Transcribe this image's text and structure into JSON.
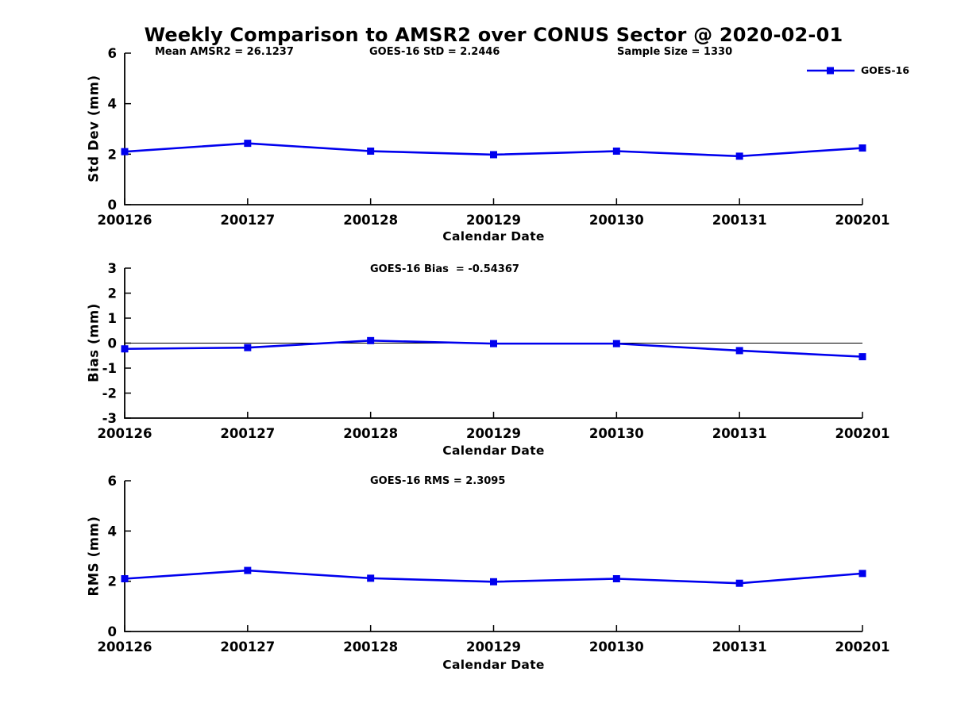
{
  "page": {
    "title": "Weekly Comparison to AMSR2 over CONUS Sector @ 2020-02-01",
    "background": "#ffffff",
    "text_color": "#000000"
  },
  "annotations": {
    "mean_amsr2": "Mean AMSR2 = 26.1237",
    "goes16_std": "GOES-16 StD = 2.2446",
    "sample_size": "Sample Size = 1330",
    "goes16_bias": "GOES-16 Bias  = -0.54367",
    "goes16_rms": "GOES-16 RMS = 2.3095"
  },
  "legend": {
    "label": "GOES-16",
    "color": "#0000ee",
    "marker": "square",
    "position": "top-right"
  },
  "chart_data": [
    {
      "type": "line",
      "name": "std-dev-vs-date",
      "title": "",
      "xlabel": "Calendar Date",
      "ylabel": "Std Dev (mm)",
      "categories": [
        "200126",
        "200127",
        "200128",
        "200129",
        "200130",
        "200131",
        "200201"
      ],
      "ylim": [
        0,
        6
      ],
      "yticks": [
        0,
        2,
        4,
        6
      ],
      "grid": false,
      "zero_line": false,
      "series": [
        {
          "name": "GOES-16",
          "color": "#0000ee",
          "marker": "square",
          "values": [
            2.1,
            2.43,
            2.12,
            1.98,
            2.12,
            1.92,
            2.2446
          ]
        }
      ]
    },
    {
      "type": "line",
      "name": "bias-vs-date",
      "title": "GOES-16 Bias  = -0.54367",
      "xlabel": "Calendar Date",
      "ylabel": "Bias (mm)",
      "categories": [
        "200126",
        "200127",
        "200128",
        "200129",
        "200130",
        "200131",
        "200201"
      ],
      "ylim": [
        -3,
        3
      ],
      "yticks": [
        -3,
        -2,
        -1,
        0,
        1,
        2,
        3
      ],
      "grid": false,
      "zero_line": true,
      "series": [
        {
          "name": "GOES-16",
          "color": "#0000ee",
          "marker": "square",
          "values": [
            -0.23,
            -0.18,
            0.1,
            -0.02,
            -0.02,
            -0.3,
            -0.54367
          ]
        }
      ]
    },
    {
      "type": "line",
      "name": "rms-vs-date",
      "title": "GOES-16 RMS = 2.3095",
      "xlabel": "Calendar Date",
      "ylabel": "RMS (mm)",
      "categories": [
        "200126",
        "200127",
        "200128",
        "200129",
        "200130",
        "200131",
        "200201"
      ],
      "ylim": [
        0,
        6
      ],
      "yticks": [
        0,
        2,
        4,
        6
      ],
      "grid": false,
      "zero_line": false,
      "series": [
        {
          "name": "GOES-16",
          "color": "#0000ee",
          "marker": "square",
          "values": [
            2.1,
            2.43,
            2.12,
            1.98,
            2.1,
            1.92,
            2.3095
          ]
        }
      ]
    }
  ]
}
